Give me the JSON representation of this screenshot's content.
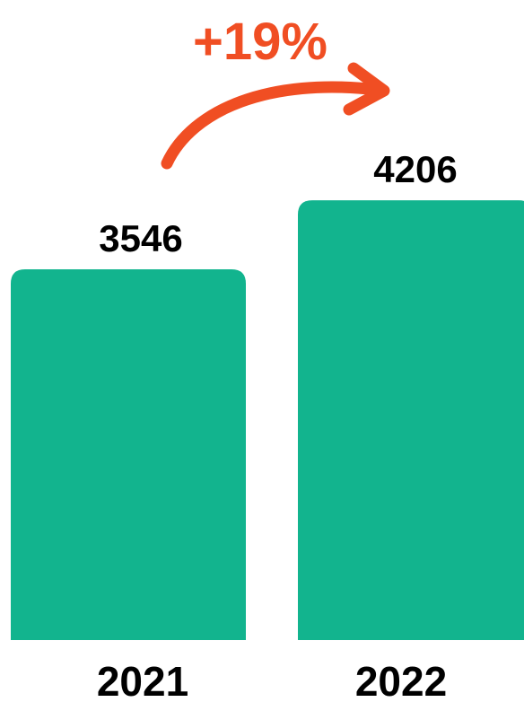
{
  "chart_data": {
    "type": "bar",
    "categories": [
      "2021",
      "2022"
    ],
    "values": [
      3546,
      4206
    ],
    "value_labels": [
      "3546",
      "4206"
    ],
    "annotation": {
      "text": "+19%",
      "from": "2021",
      "to": "2022"
    },
    "colors": {
      "bar": "#12B48E",
      "annotation": "#F04E23",
      "text": "#000000"
    }
  }
}
